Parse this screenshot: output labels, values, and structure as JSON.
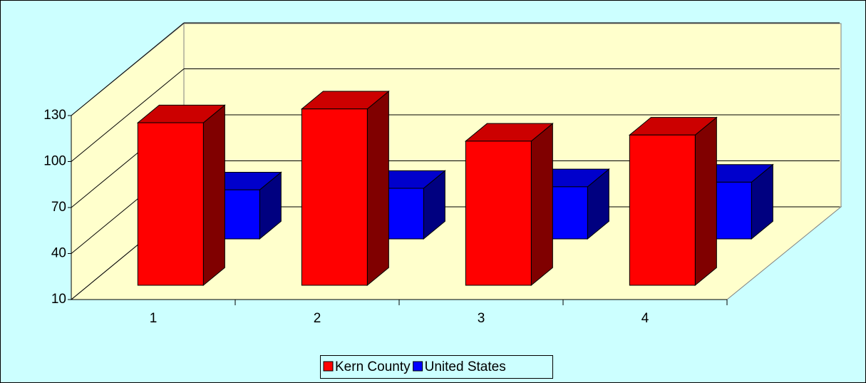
{
  "chart_data": {
    "type": "bar3d",
    "categories": [
      "1",
      "2",
      "3",
      "4"
    ],
    "series": [
      {
        "name": "Kern County",
        "color": "#ff0000",
        "values": [
          116,
          125,
          104,
          108
        ]
      },
      {
        "name": "United States",
        "color": "#0000ff",
        "values": [
          42,
          43,
          44,
          47
        ]
      }
    ],
    "ylim": [
      10,
      130
    ],
    "yticks": [
      10,
      40,
      70,
      100,
      130
    ],
    "grid": true,
    "legend": "bottom"
  }
}
